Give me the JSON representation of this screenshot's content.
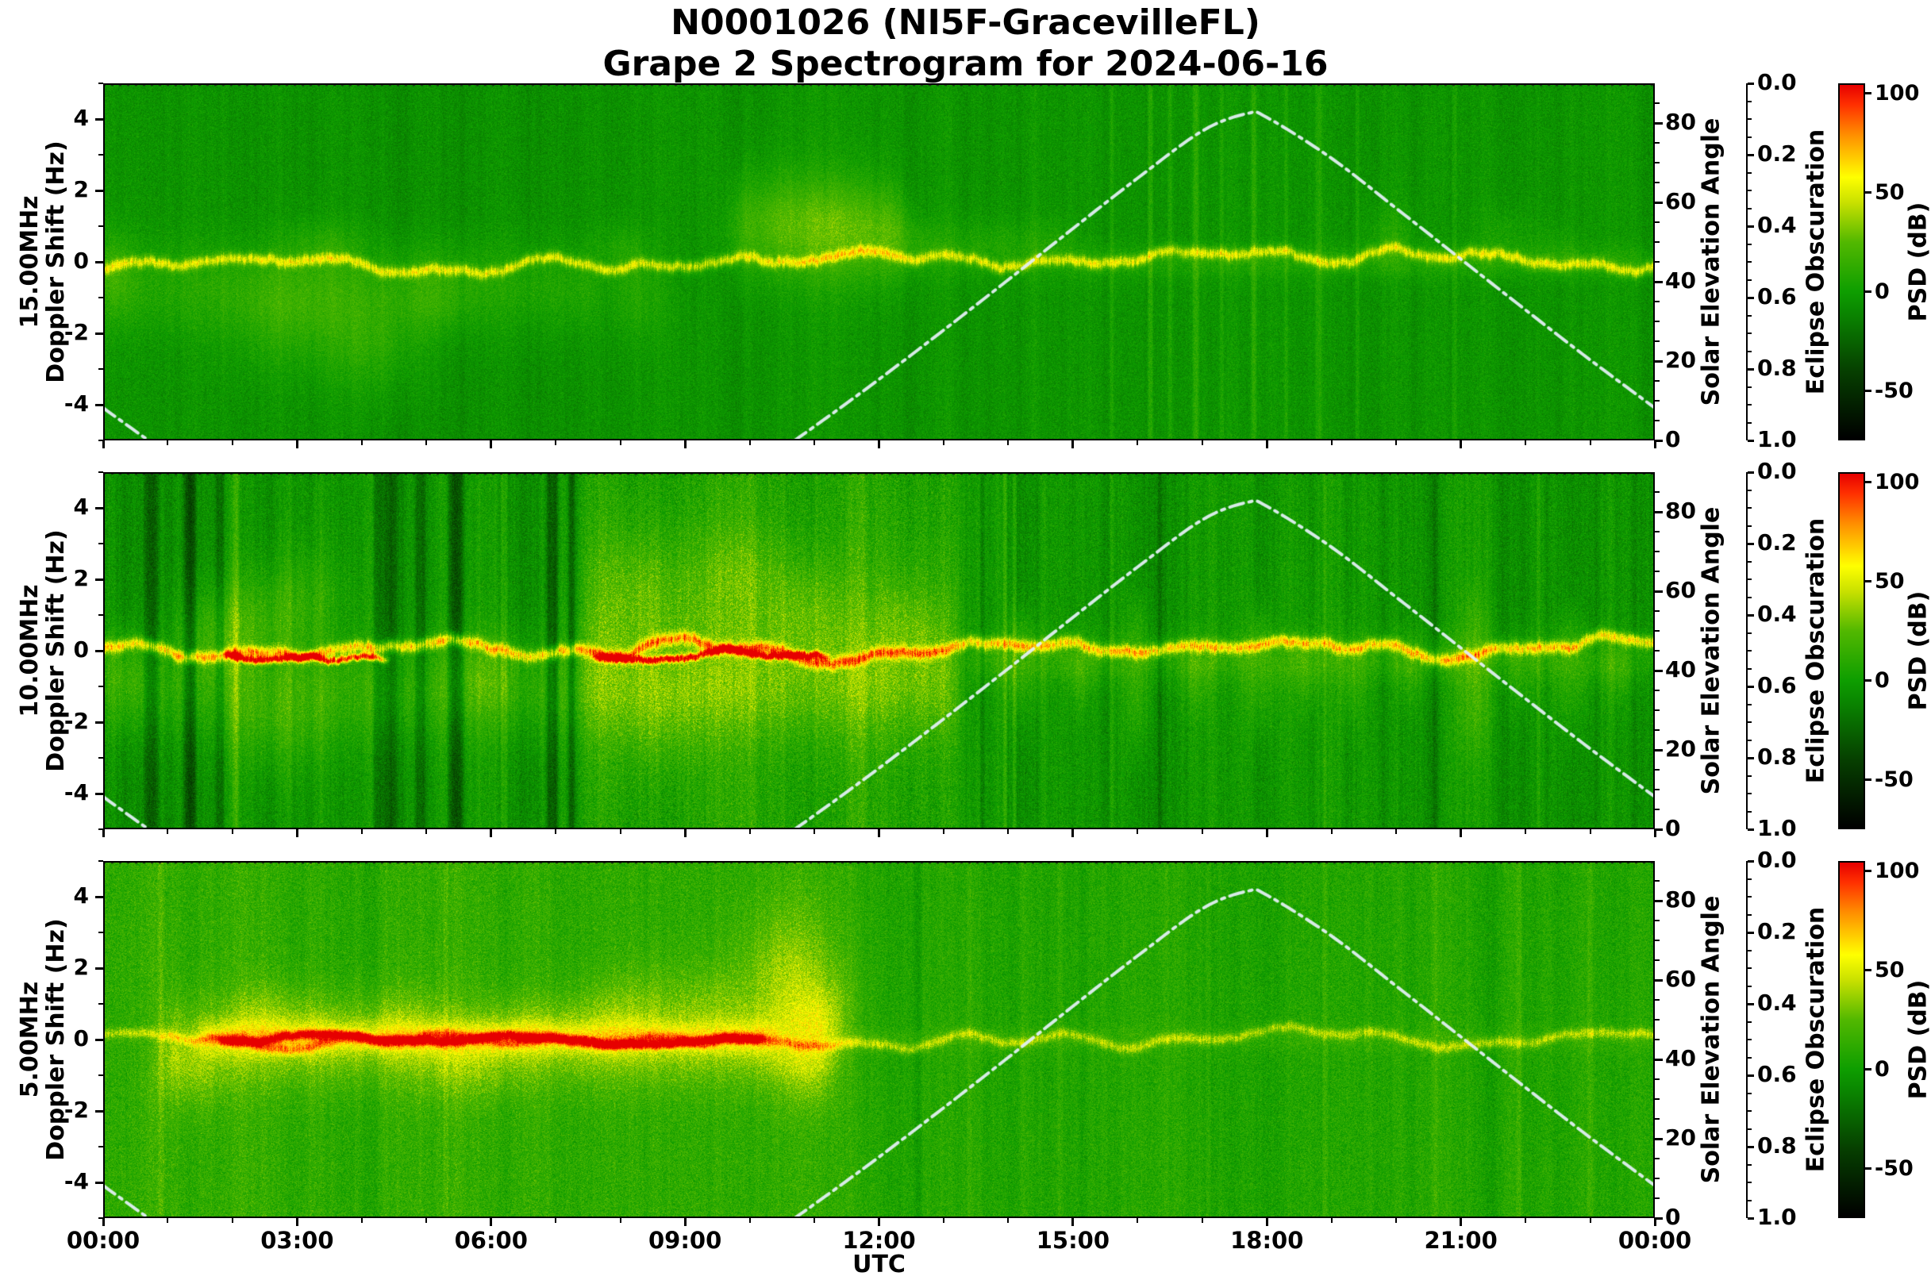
{
  "title_line1": "N0001026 (NI5F-GracevilleFL)",
  "title_line2": "Grape 2 Spectrogram for 2024-06-16",
  "chart_data": {
    "type": "heatmap",
    "subtype": "doppler-spectrogram",
    "station_node": "N0001026",
    "station_name": "NI5F-GracevilleFL",
    "date": "2024-06-16",
    "x": {
      "label": "UTC",
      "range_hours": [
        0,
        24
      ],
      "tick_hours": [
        0,
        3,
        6,
        9,
        12,
        15,
        18,
        21,
        24
      ],
      "tick_labels": [
        "00:00",
        "03:00",
        "06:00",
        "09:00",
        "12:00",
        "15:00",
        "18:00",
        "21:00",
        "00:00"
      ],
      "minor_step_hours": 1
    },
    "doppler_axis": {
      "label": "Doppler Shift (Hz)",
      "range": [
        -5,
        5
      ],
      "ticks": [
        4,
        2,
        0,
        -2,
        -4
      ],
      "minor_ticks": [
        -5,
        -3,
        -1,
        1,
        3,
        5
      ]
    },
    "solar_axis": {
      "label": "Solar Elevation Angle",
      "range": [
        0,
        90
      ],
      "ticks": [
        0,
        20,
        40,
        60,
        80
      ],
      "minor_step": 5
    },
    "eclipse_axis": {
      "label": "Eclipse Obscuration",
      "range": [
        0,
        1
      ],
      "inverted": true,
      "tick_labels": [
        "0.0",
        "0.2",
        "0.4",
        "0.6",
        "0.8",
        "1.0"
      ],
      "minor_step": 0.05,
      "line_value": 0
    },
    "colorbar": {
      "label": "PSD (dB)",
      "range": [
        -75,
        105
      ],
      "ticks": [
        100,
        50,
        0,
        -50
      ],
      "stops": [
        [
          -75,
          "#000000"
        ],
        [
          -40,
          "#064000"
        ],
        [
          -10,
          "#0a8800"
        ],
        [
          0,
          "#0e9e00"
        ],
        [
          25,
          "#52b800"
        ],
        [
          45,
          "#c8e000"
        ],
        [
          58,
          "#ffff00"
        ],
        [
          80,
          "#ff8c00"
        ],
        [
          95,
          "#ff3000"
        ],
        [
          105,
          "#e60000"
        ]
      ]
    },
    "solar_curve": {
      "style": "dash-dot",
      "color": "#e1eff2",
      "peak_elevation_deg": 82.4,
      "peak_hour_utc": 17.7,
      "hours": [
        0,
        1,
        2,
        3,
        4,
        5,
        6,
        7,
        8,
        9,
        10,
        11,
        12,
        13,
        14,
        15,
        16,
        17,
        17.7,
        18,
        19,
        20,
        21,
        22,
        23,
        24
      ],
      "elevation_deg": [
        8.2,
        -3.4,
        -14.0,
        -23.2,
        -30.4,
        -34.8,
        -35.5,
        -32.6,
        -26.4,
        -17.9,
        -7.8,
        3.5,
        15.4,
        27.8,
        40.5,
        53.4,
        66.1,
        78.0,
        82.4,
        81.4,
        71.1,
        58.5,
        45.7,
        32.9,
        20.3,
        8.2
      ]
    },
    "panels": [
      {
        "frequency_label": "15.00MHz",
        "seed": 11,
        "base": -4,
        "speckle": 9.5,
        "colwalk": [
          0.93,
          5,
          0.5
        ],
        "trace": {
          "amp": 46,
          "sigma": 0.11,
          "wander": 0.85
        },
        "red_trace": {
          "segments": [],
          "amp": 0,
          "sigma": 0.07,
          "wiggle": 0
        },
        "bands": [
          [
            0,
            7.6,
            -0.7,
            0.9,
            12
          ],
          [
            9.7,
            12.4,
            0.9,
            1.0,
            16
          ],
          [
            12.4,
            15,
            0.35,
            0.55,
            11
          ],
          [
            15,
            24,
            0,
            0.32,
            10
          ]
        ],
        "blobs": [
          [
            0.15,
            -0.3,
            0.2,
            0.8,
            12
          ],
          [
            2.9,
            -1.6,
            0.7,
            1.1,
            13
          ],
          [
            4.2,
            -2.4,
            0.5,
            1.0,
            13
          ],
          [
            3.4,
            0.5,
            0.4,
            0.5,
            9
          ],
          [
            5.1,
            -1,
            0.4,
            0.8,
            9
          ],
          [
            8.2,
            -0.9,
            0.35,
            0.9,
            12
          ],
          [
            8,
            0.4,
            0.25,
            0.5,
            9
          ],
          [
            10.4,
            1.2,
            0.5,
            1,
            9
          ],
          [
            11.4,
            0.9,
            0.5,
            1,
            14
          ],
          [
            12.2,
            0.6,
            0.3,
            0.7,
            9
          ],
          [
            19.9,
            0.8,
            0.25,
            0.6,
            10
          ],
          [
            21.7,
            0.7,
            0.3,
            0.6,
            8
          ],
          [
            22.5,
            0.4,
            0.2,
            0.5,
            7
          ]
        ],
        "stripes": [
          [
            15.6,
            0.03,
            10
          ],
          [
            16.2,
            0.04,
            12
          ],
          [
            16.5,
            0.03,
            9
          ],
          [
            16.9,
            0.05,
            12
          ],
          [
            17.3,
            0.03,
            9
          ],
          [
            17.8,
            0.04,
            11
          ],
          [
            18.3,
            0.03,
            9
          ],
          [
            18.8,
            0.05,
            10
          ],
          [
            19.4,
            0.03,
            8
          ],
          [
            20.9,
            0.04,
            9
          ]
        ],
        "regions": []
      },
      {
        "frequency_label": "10.00MHz",
        "seed": 77,
        "base": -3,
        "speckle": 12,
        "colwalk": [
          0.9,
          7,
          0.8
        ],
        "trace": {
          "amp": 58,
          "sigma": 0.12,
          "wander": 0.7
        },
        "red_trace": {
          "segments": [
            [
              1.9,
              4.4
            ],
            [
              7.6,
              11.2
            ]
          ],
          "amp": 92,
          "sigma": 0.07,
          "wiggle": 0.5
        },
        "bands": [
          [
            0,
            13.2,
            -1.1,
            1.0,
            15
          ],
          [
            7.4,
            13.2,
            0.3,
            1.6,
            12
          ],
          [
            13.4,
            24,
            -0.25,
            0.45,
            12
          ]
        ],
        "blobs": [
          [
            0.3,
            -0.5,
            0.3,
            0.9,
            10
          ],
          [
            1.6,
            0.5,
            0.4,
            1,
            12
          ],
          [
            2.3,
            0.8,
            0.5,
            0.9,
            14
          ],
          [
            3.1,
            1.5,
            0.5,
            1,
            12
          ],
          [
            2.7,
            -2.2,
            0.6,
            1,
            10
          ],
          [
            5.9,
            -0.6,
            0.4,
            0.8,
            10
          ],
          [
            8.3,
            1.8,
            0.5,
            1.2,
            14
          ],
          [
            8.6,
            -2,
            0.5,
            1.1,
            10
          ],
          [
            9.8,
            2.2,
            0.5,
            1,
            12
          ],
          [
            10.9,
            1.2,
            0.4,
            0.9,
            12
          ],
          [
            12.4,
            0.8,
            0.35,
            0.8,
            10
          ],
          [
            14.2,
            -0.9,
            0.2,
            0.8,
            14
          ],
          [
            15.1,
            -0.7,
            0.15,
            0.7,
            12
          ],
          [
            16,
            -1.3,
            0.15,
            1,
            16
          ],
          [
            16.9,
            -0.8,
            0.2,
            0.8,
            12
          ],
          [
            17.9,
            -1,
            0.2,
            0.9,
            14
          ],
          [
            18.6,
            -0.7,
            0.15,
            0.7,
            12
          ],
          [
            19.3,
            -0.9,
            0.15,
            0.8,
            12
          ],
          [
            20.2,
            -0.7,
            0.15,
            0.7,
            10
          ],
          [
            21.2,
            -1.4,
            0.2,
            1.1,
            16
          ],
          [
            21.9,
            -0.8,
            0.15,
            0.8,
            12
          ],
          [
            22.7,
            -1,
            0.2,
            0.9,
            14
          ],
          [
            23.4,
            -0.7,
            0.15,
            0.7,
            11
          ],
          [
            14.2,
            0.6,
            0.15,
            0.5,
            10
          ],
          [
            16,
            0.8,
            0.12,
            0.6,
            10
          ],
          [
            17.9,
            0.6,
            0.12,
            0.5,
            9
          ],
          [
            21.2,
            0.9,
            0.15,
            0.7,
            10
          ],
          [
            22.7,
            0.6,
            0.12,
            0.5,
            9
          ]
        ],
        "stripes": [
          [
            0.75,
            0.12,
            -24
          ],
          [
            1.35,
            0.1,
            -26
          ],
          [
            1.8,
            0.07,
            -20
          ],
          [
            2.05,
            0.05,
            14
          ],
          [
            4.35,
            0.18,
            -26
          ],
          [
            4.9,
            0.08,
            -18
          ],
          [
            5.45,
            0.12,
            -24
          ],
          [
            6.2,
            0.05,
            12
          ],
          [
            6.95,
            0.1,
            -26
          ],
          [
            7.25,
            0.06,
            -18
          ],
          [
            13.6,
            0.04,
            -14
          ],
          [
            13.95,
            0.03,
            16
          ],
          [
            14.1,
            0.03,
            14
          ],
          [
            15.6,
            0.03,
            10
          ],
          [
            16.35,
            0.04,
            -12
          ],
          [
            18.9,
            0.03,
            10
          ],
          [
            20.6,
            0.05,
            -10
          ],
          [
            22.2,
            0.03,
            8
          ]
        ],
        "regions": [
          [
            7.4,
            13.2,
            9,
            1.3
          ]
        ]
      },
      {
        "frequency_label": "5.00MHz",
        "seed": 303,
        "base": 8,
        "speckle": 13,
        "colwalk": [
          0.92,
          5,
          0.6
        ],
        "trace": {
          "amp": 30,
          "sigma": 0.1,
          "wander": 0.5
        },
        "red_trace": {
          "segments": [
            [
              1.8,
              10.2
            ]
          ],
          "amp": 70,
          "sigma": 0.08,
          "wiggle": 0.3
        },
        "bands": [
          [
            0.9,
            11.3,
            -0.2,
            0.85,
            20
          ],
          [
            1.5,
            10.4,
            0.05,
            0.3,
            26
          ],
          [
            11.3,
            24,
            0,
            0.25,
            6
          ]
        ],
        "blobs": [
          [
            1.3,
            -1,
            0.4,
            0.8,
            10
          ],
          [
            2.4,
            0.6,
            0.4,
            0.7,
            12
          ],
          [
            3.3,
            0.4,
            0.5,
            0.7,
            10
          ],
          [
            4.6,
            0.5,
            0.4,
            0.7,
            11
          ],
          [
            5.6,
            -0.6,
            0.5,
            0.8,
            10
          ],
          [
            6.6,
            0.3,
            0.4,
            0.6,
            10
          ],
          [
            7.7,
            0.5,
            0.4,
            0.8,
            11
          ],
          [
            8.4,
            0.9,
            0.4,
            0.9,
            12
          ],
          [
            9.4,
            1,
            0.4,
            0.9,
            12
          ],
          [
            10.6,
            1.6,
            0.5,
            1.5,
            26
          ],
          [
            11.2,
            0.7,
            0.3,
            0.8,
            14
          ],
          [
            10.9,
            -0.8,
            0.3,
            0.9,
            10
          ]
        ],
        "stripes": [
          [
            0.9,
            0.05,
            8
          ],
          [
            5.3,
            0.04,
            7
          ],
          [
            12.6,
            0.06,
            -8
          ],
          [
            13.4,
            0.04,
            8
          ],
          [
            14.8,
            0.05,
            6
          ],
          [
            17.1,
            0.04,
            6
          ],
          [
            18.9,
            0.05,
            8
          ],
          [
            20.6,
            0.06,
            7
          ],
          [
            21.9,
            0.04,
            6
          ],
          [
            23,
            0.05,
            7
          ]
        ],
        "regions": [
          [
            0,
            11.5,
            4,
            1.1
          ]
        ]
      }
    ]
  }
}
